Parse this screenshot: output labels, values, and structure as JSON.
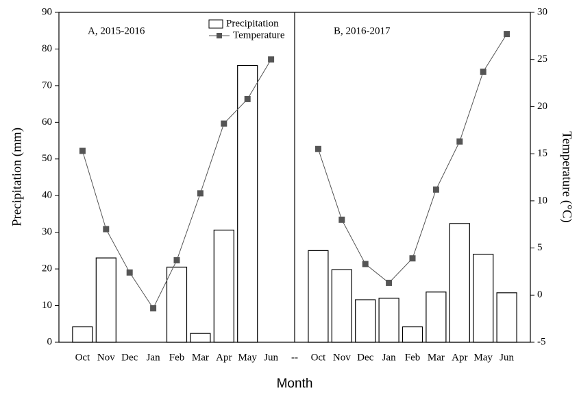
{
  "chart_data": {
    "type": "bar",
    "categories": [
      "Oct",
      "Nov",
      "Dec",
      "Jan",
      "Feb",
      "Mar",
      "Apr",
      "May",
      "Jun",
      "--",
      "Oct",
      "Nov",
      "Dec",
      "Jan",
      "Feb",
      "Mar",
      "Apr",
      "May",
      "Jun"
    ],
    "series": [
      {
        "name": "Precipitation",
        "type": "bar",
        "color": "#ffffff",
        "values": [
          4.2,
          23,
          0,
          0,
          20.5,
          2.4,
          30.6,
          75.5,
          0,
          null,
          25,
          19.8,
          11.6,
          12,
          4.2,
          13.7,
          32.4,
          24,
          13.5
        ]
      },
      {
        "name": "Temperature",
        "type": "line",
        "axis": "y2",
        "color": "#555555",
        "values": [
          15.3,
          7.0,
          2.4,
          -1.4,
          3.7,
          10.8,
          18.2,
          20.8,
          25.0,
          null,
          15.5,
          8.0,
          3.3,
          1.3,
          3.9,
          11.2,
          16.3,
          23.7,
          27.7
        ]
      }
    ],
    "ylim": [
      0,
      90
    ],
    "yticks": [
      0,
      10,
      20,
      30,
      40,
      50,
      60,
      70,
      80,
      90
    ],
    "y2lim": [
      -5,
      30
    ],
    "y2ticks": [
      -5,
      0,
      5,
      10,
      15,
      20,
      25,
      30
    ],
    "x_label": "Month",
    "y_label": "Precipitation (mm)",
    "y2_label": "Temperature (°C)",
    "annotations": [
      "A, 2015-2016",
      "B, 2016-2017"
    ]
  }
}
